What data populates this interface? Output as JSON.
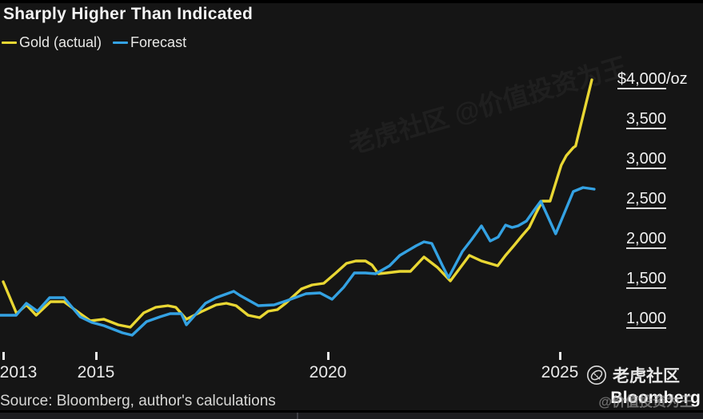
{
  "title": "Sharply Higher Than Indicated",
  "legend": [
    {
      "label": "Gold (actual)",
      "color": "#e9d733"
    },
    {
      "label": "Forecast",
      "color": "#34a2e3"
    }
  ],
  "source": "Source: Bloomberg, author's calculations",
  "watermarks": {
    "tiger_community": "老虎社区",
    "bloomberg": "Bloomberg",
    "chinese_overlay": "@价值投资为王",
    "ghost_text": "老虎社区 @价值投资为王"
  },
  "chart_data": {
    "type": "line",
    "title": "Sharply Higher Than Indicated",
    "unit": "$/oz",
    "grid": "off",
    "legend_position": "top-left",
    "x_axis": {
      "ticks": [
        2013,
        2015,
        2020,
        2025
      ],
      "range": [
        2012.9,
        2025.9
      ]
    },
    "y_axis": {
      "range": [
        750,
        4250
      ],
      "ticks": [
        {
          "value": 4000,
          "label": "$4,000",
          "suffix": "/oz"
        },
        {
          "value": 3500,
          "label": "3,500",
          "suffix": ""
        },
        {
          "value": 3000,
          "label": "3,000",
          "suffix": ""
        },
        {
          "value": 2500,
          "label": "2,500",
          "suffix": ""
        },
        {
          "value": 2000,
          "label": "2,000",
          "suffix": ""
        },
        {
          "value": 1500,
          "label": "1,500",
          "suffix": ""
        },
        {
          "value": 1000,
          "label": "1,000",
          "suffix": ""
        }
      ]
    },
    "series": [
      {
        "name": "Gold (actual)",
        "color": "#e9d733",
        "points": [
          [
            2013.0,
            1590
          ],
          [
            2013.29,
            1190
          ],
          [
            2013.5,
            1300
          ],
          [
            2013.71,
            1170
          ],
          [
            2014.02,
            1340
          ],
          [
            2014.31,
            1340
          ],
          [
            2014.66,
            1190
          ],
          [
            2014.88,
            1100
          ],
          [
            2015.17,
            1120
          ],
          [
            2015.48,
            1050
          ],
          [
            2015.74,
            1020
          ],
          [
            2016.03,
            1200
          ],
          [
            2016.29,
            1270
          ],
          [
            2016.55,
            1290
          ],
          [
            2016.72,
            1270
          ],
          [
            2016.95,
            1120
          ],
          [
            2017.29,
            1220
          ],
          [
            2017.59,
            1300
          ],
          [
            2017.81,
            1320
          ],
          [
            2018.02,
            1290
          ],
          [
            2018.28,
            1170
          ],
          [
            2018.53,
            1140
          ],
          [
            2018.71,
            1220
          ],
          [
            2018.91,
            1240
          ],
          [
            2019.09,
            1320
          ],
          [
            2019.43,
            1500
          ],
          [
            2019.66,
            1550
          ],
          [
            2019.91,
            1570
          ],
          [
            2020.17,
            1700
          ],
          [
            2020.4,
            1820
          ],
          [
            2020.6,
            1850
          ],
          [
            2020.81,
            1850
          ],
          [
            2020.95,
            1800
          ],
          [
            2021.09,
            1690
          ],
          [
            2021.26,
            1700
          ],
          [
            2021.55,
            1720
          ],
          [
            2021.78,
            1720
          ],
          [
            2022.07,
            1900
          ],
          [
            2022.36,
            1770
          ],
          [
            2022.64,
            1600
          ],
          [
            2023.05,
            1920
          ],
          [
            2023.31,
            1850
          ],
          [
            2023.66,
            1790
          ],
          [
            2023.83,
            1920
          ],
          [
            2024.02,
            2050
          ],
          [
            2024.19,
            2170
          ],
          [
            2024.34,
            2270
          ],
          [
            2024.48,
            2440
          ],
          [
            2024.62,
            2600
          ],
          [
            2024.79,
            2600
          ],
          [
            2025.03,
            3050
          ],
          [
            2025.14,
            3170
          ],
          [
            2025.29,
            3270
          ],
          [
            2025.34,
            3290
          ],
          [
            2025.69,
            4120
          ]
        ]
      },
      {
        "name": "Forecast",
        "color": "#34a2e3",
        "points": [
          [
            2012.93,
            1170
          ],
          [
            2013.28,
            1170
          ],
          [
            2013.5,
            1320
          ],
          [
            2013.74,
            1220
          ],
          [
            2014.0,
            1390
          ],
          [
            2014.31,
            1390
          ],
          [
            2014.66,
            1150
          ],
          [
            2014.91,
            1080
          ],
          [
            2015.17,
            1040
          ],
          [
            2015.57,
            950
          ],
          [
            2015.78,
            920
          ],
          [
            2016.09,
            1090
          ],
          [
            2016.38,
            1150
          ],
          [
            2016.6,
            1190
          ],
          [
            2016.84,
            1190
          ],
          [
            2016.95,
            1050
          ],
          [
            2017.36,
            1320
          ],
          [
            2017.59,
            1390
          ],
          [
            2017.97,
            1470
          ],
          [
            2018.1,
            1420
          ],
          [
            2018.5,
            1290
          ],
          [
            2018.84,
            1300
          ],
          [
            2019.1,
            1350
          ],
          [
            2019.53,
            1440
          ],
          [
            2019.83,
            1450
          ],
          [
            2020.09,
            1370
          ],
          [
            2020.34,
            1520
          ],
          [
            2020.57,
            1700
          ],
          [
            2020.81,
            1700
          ],
          [
            2021.03,
            1690
          ],
          [
            2021.33,
            1790
          ],
          [
            2021.55,
            1920
          ],
          [
            2021.9,
            2040
          ],
          [
            2022.07,
            2090
          ],
          [
            2022.24,
            2070
          ],
          [
            2022.47,
            1790
          ],
          [
            2022.6,
            1640
          ],
          [
            2022.9,
            1970
          ],
          [
            2023.1,
            2120
          ],
          [
            2023.31,
            2290
          ],
          [
            2023.5,
            2100
          ],
          [
            2023.67,
            2150
          ],
          [
            2023.83,
            2300
          ],
          [
            2023.97,
            2270
          ],
          [
            2024.1,
            2290
          ],
          [
            2024.28,
            2350
          ],
          [
            2024.45,
            2490
          ],
          [
            2024.59,
            2600
          ],
          [
            2024.91,
            2190
          ],
          [
            2025.29,
            2720
          ],
          [
            2025.5,
            2770
          ],
          [
            2025.74,
            2750
          ]
        ]
      }
    ]
  }
}
